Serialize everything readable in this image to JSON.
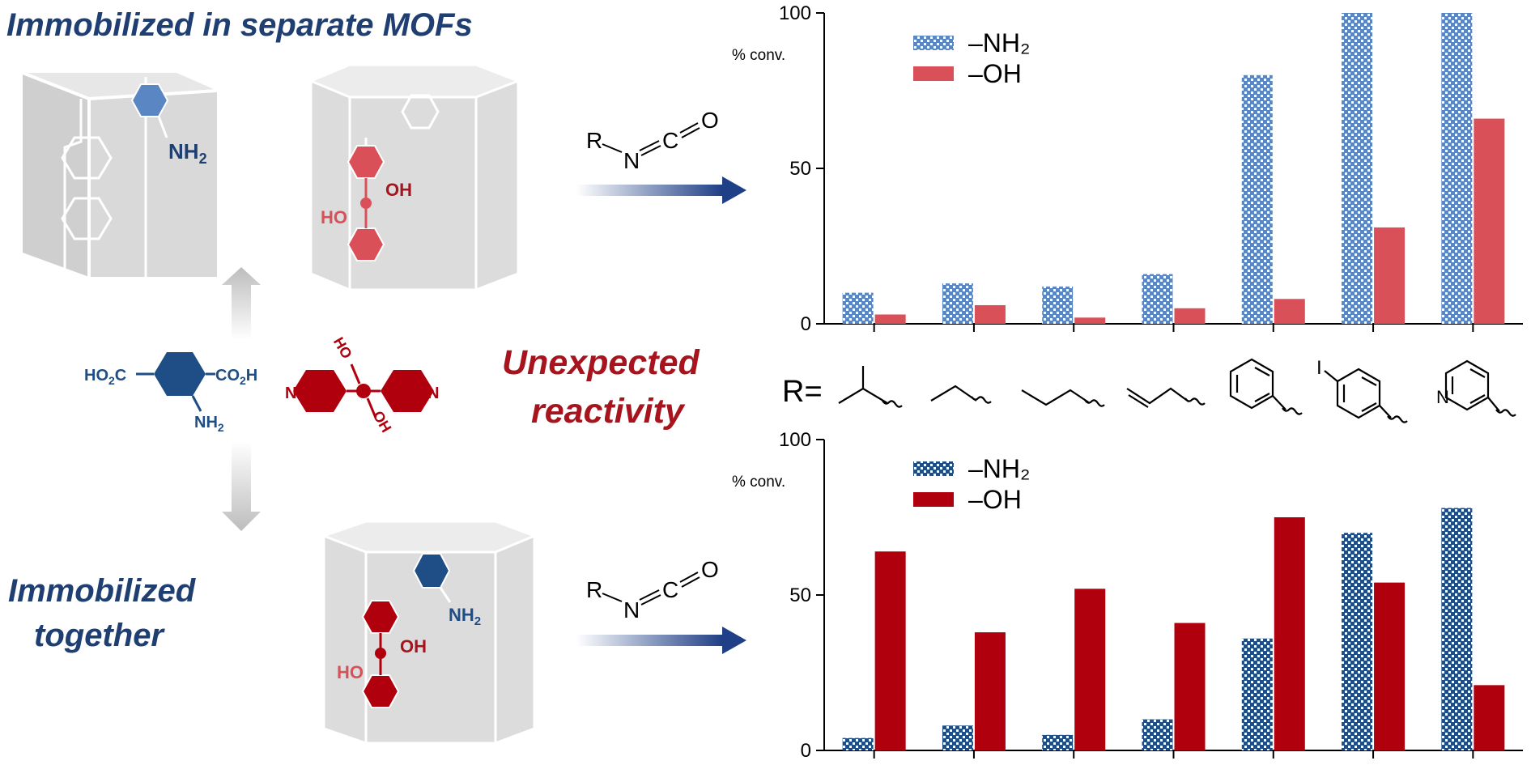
{
  "left_panel": {
    "title_top": "Immobilized in separate MOFs",
    "title_bottom_line1": "Immobilized",
    "title_bottom_line2": "together",
    "middle_text_line1": "Unexpected",
    "middle_text_line2": "reactivity",
    "nh2": "NH",
    "nh2_sub": "2",
    "oh": "OH",
    "ho": "HO",
    "ho2c": "HO",
    "ho2c_sub": "2",
    "ho2c_c": "C",
    "co2h_c": "CO",
    "co2h_sub": "2",
    "co2h_h": "H",
    "n_letter": "N",
    "reagent_r": "R",
    "reagent_n": "N",
    "reagent_c": "C",
    "reagent_o": "O"
  },
  "r_label": "R=",
  "substituent_labels": {
    "iodo": "I",
    "pyridyl_n": "N"
  },
  "colors": {
    "nh2_blue_top": "#5b86c4",
    "oh_red_top": "#d95058",
    "nh2_blue_bottom": "#1f4e86",
    "oh_red_bottom": "#b0000d",
    "title_blue": "#1f3f73",
    "title_red": "#a8141e"
  },
  "chart_data": [
    {
      "type": "bar",
      "position": "top",
      "ylabel": "% conv.",
      "ylim": [
        0,
        100
      ],
      "yticks": [
        "0",
        "50",
        "100"
      ],
      "legend": [
        "–NH₂",
        "–OH"
      ],
      "categories": [
        "isopropyl",
        "ethyl",
        "propyl",
        "allyl",
        "phenyl",
        "4-iodophenyl",
        "3-pyridyl"
      ],
      "series": [
        {
          "name": "–NH₂",
          "pattern": "checked",
          "color": "#5b86c4",
          "values": [
            10,
            13,
            12,
            16,
            80,
            100,
            100
          ]
        },
        {
          "name": "–OH",
          "pattern": "solid",
          "color": "#d95058",
          "values": [
            3,
            6,
            2,
            5,
            8,
            31,
            66
          ]
        }
      ]
    },
    {
      "type": "bar",
      "position": "bottom",
      "ylabel": "% conv.",
      "ylim": [
        0,
        100
      ],
      "yticks": [
        "0",
        "50",
        "100"
      ],
      "legend": [
        "–NH₂",
        "–OH"
      ],
      "categories": [
        "isopropyl",
        "ethyl",
        "propyl",
        "allyl",
        "phenyl",
        "4-iodophenyl",
        "3-pyridyl"
      ],
      "series": [
        {
          "name": "–NH₂",
          "pattern": "checked",
          "color": "#1f4e86",
          "values": [
            4,
            8,
            5,
            10,
            36,
            70,
            78
          ]
        },
        {
          "name": "–OH",
          "pattern": "solid",
          "color": "#b0000d",
          "values": [
            64,
            38,
            52,
            41,
            75,
            54,
            21
          ]
        }
      ]
    }
  ]
}
